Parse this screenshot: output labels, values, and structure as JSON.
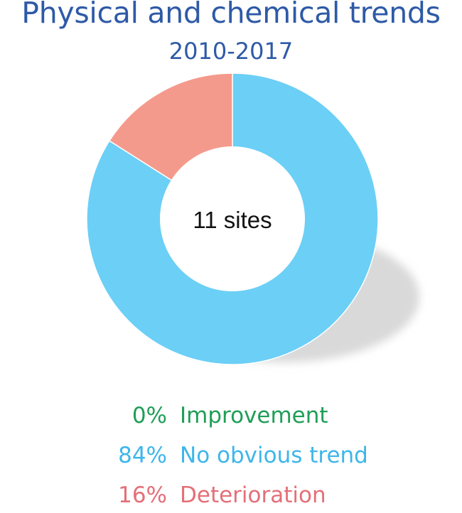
{
  "chart_data": {
    "type": "pie",
    "title": "Physical and chemical trends",
    "subtitle": "2010-2017",
    "center_label": "11 sites",
    "colors": {
      "title": "#2e5aa6",
      "shadow": "#d9d9d9"
    },
    "series": [
      {
        "name": "Improvement",
        "pct_label": "0%",
        "value": 0,
        "color": "#1f9e57",
        "slice_color": "#1f9e57"
      },
      {
        "name": "No obvious trend",
        "pct_label": "84%",
        "value": 84,
        "color": "#3eb6ea",
        "slice_color": "#6ccff6"
      },
      {
        "name": "Deterioration",
        "pct_label": "16%",
        "value": 16,
        "color": "#e46f78",
        "slice_color": "#f49a8c"
      }
    ]
  }
}
